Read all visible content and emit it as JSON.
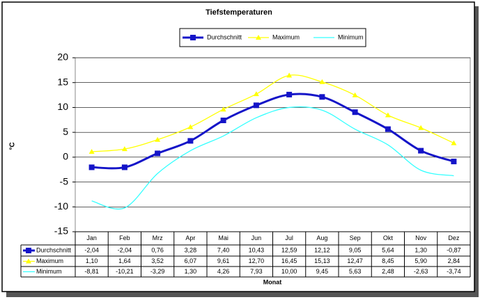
{
  "chart_data": {
    "type": "line",
    "title": "Tiefstemperaturen",
    "x_label": "Monat",
    "y_label": "°C",
    "categories": [
      "Jan",
      "Feb",
      "Mrz",
      "Apr",
      "Mai",
      "Jun",
      "Jul",
      "Aug",
      "Sep",
      "Okt",
      "Nov",
      "Dez"
    ],
    "series": [
      {
        "name": "Durchschnitt",
        "color": "#1414c8",
        "marker": "square",
        "values": [
          -2.04,
          -2.04,
          0.76,
          3.28,
          7.4,
          10.43,
          12.59,
          12.12,
          9.05,
          5.64,
          1.3,
          -0.87
        ],
        "value_labels": [
          "-2,04",
          "-2,04",
          "0,76",
          "3,28",
          "7,40",
          "10,43",
          "12,59",
          "12,12",
          "9,05",
          "5,64",
          "1,30",
          "-0,87"
        ]
      },
      {
        "name": "Maximum",
        "color": "#ffff00",
        "marker": "triangle",
        "values": [
          1.1,
          1.64,
          3.52,
          6.07,
          9.61,
          12.7,
          16.45,
          15.13,
          12.47,
          8.45,
          5.9,
          2.84
        ],
        "value_labels": [
          "1,10",
          "1,64",
          "3,52",
          "6,07",
          "9,61",
          "12,70",
          "16,45",
          "15,13",
          "12,47",
          "8,45",
          "5,90",
          "2,84"
        ]
      },
      {
        "name": "Minimum",
        "color": "#33ffff",
        "marker": "none",
        "values": [
          -8.81,
          -10.21,
          -3.29,
          1.3,
          4.26,
          7.93,
          10.0,
          9.45,
          5.63,
          2.48,
          -2.63,
          -3.74
        ],
        "value_labels": [
          "-8,81",
          "-10,21",
          "-3,29",
          "1,30",
          "4,26",
          "7,93",
          "10,00",
          "9,45",
          "5,63",
          "2,48",
          "-2,63",
          "-3,74"
        ]
      }
    ],
    "ylim": [
      -15,
      20
    ],
    "yticks": [
      -15,
      -10,
      -5,
      0,
      5,
      10,
      15,
      20
    ],
    "grid": true,
    "legend": "top"
  }
}
